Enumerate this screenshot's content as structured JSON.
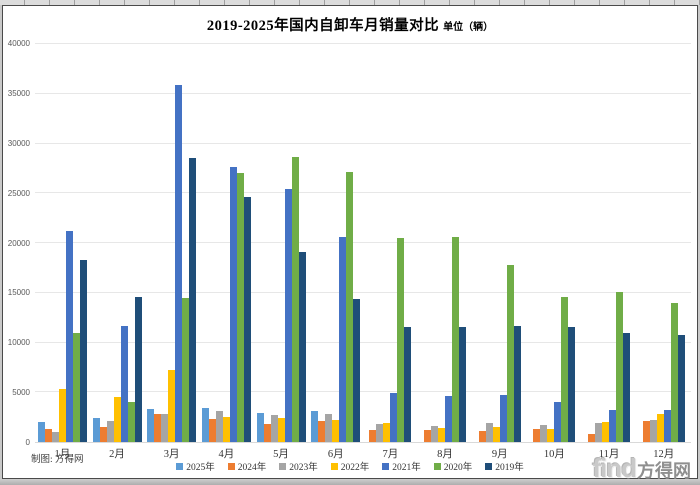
{
  "credit": "制图: 方得网",
  "watermark": {
    "latin": "find",
    "cjk": "方得网"
  },
  "chart_data": {
    "type": "bar",
    "title": "2019-2025年国内自卸车月销量对比",
    "unit_label": "单位（辆）",
    "xlabel": "",
    "ylabel": "",
    "ylim": [
      0,
      40000
    ],
    "ytick_step": 5000,
    "grid": true,
    "legend_position": "bottom",
    "categories": [
      "1月",
      "2月",
      "3月",
      "4月",
      "5月",
      "6月",
      "7月",
      "8月",
      "9月",
      "10月",
      "11月",
      "12月"
    ],
    "series": [
      {
        "name": "2025年",
        "color": "#5B9BD5",
        "values": [
          2000,
          2400,
          3300,
          3400,
          2900,
          3100,
          null,
          null,
          null,
          null,
          null,
          null
        ]
      },
      {
        "name": "2024年",
        "color": "#ED7D31",
        "values": [
          1300,
          1500,
          2800,
          2300,
          1800,
          2100,
          1200,
          1200,
          1100,
          1300,
          800,
          2100
        ]
      },
      {
        "name": "2023年",
        "color": "#A5A5A5",
        "values": [
          1000,
          2100,
          2800,
          3100,
          2700,
          2800,
          1800,
          1600,
          1900,
          1700,
          1900,
          2200
        ]
      },
      {
        "name": "2022年",
        "color": "#FFC000",
        "values": [
          5300,
          4500,
          7200,
          2500,
          2400,
          2200,
          1900,
          1400,
          1500,
          1300,
          2000,
          2800
        ]
      },
      {
        "name": "2021年",
        "color": "#4472C4",
        "values": [
          21200,
          11700,
          35900,
          27600,
          25400,
          20600,
          4900,
          4600,
          4700,
          4000,
          3200,
          3200
        ]
      },
      {
        "name": "2020年",
        "color": "#70AD47",
        "values": [
          11000,
          4000,
          14500,
          27000,
          28600,
          27100,
          20500,
          20600,
          17800,
          14600,
          15100,
          14000
        ]
      },
      {
        "name": "2019年",
        "color": "#1F4E79",
        "values": [
          18300,
          14600,
          28500,
          24600,
          19100,
          14400,
          11600,
          11600,
          11700,
          11600,
          11000,
          10800
        ]
      }
    ]
  }
}
